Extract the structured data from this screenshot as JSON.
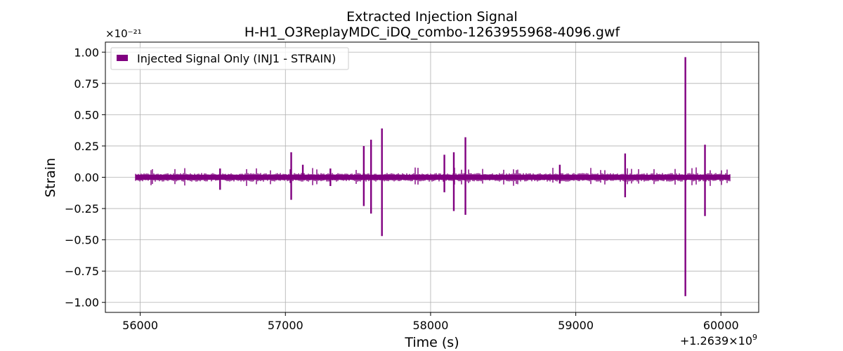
{
  "chart_data": {
    "type": "line",
    "title": "Extracted Injection Signal",
    "subtitle": "H-H1_O3ReplayMDC_iDQ_combo-1263955968-4096.gwf",
    "xlabel": "Time (s)",
    "ylabel": "Strain",
    "y_exponent_label": "×10⁻²¹",
    "x_offset_label": "+1.2639×10⁹",
    "x_offset_main": "+1.2639",
    "x_offset_times": "×",
    "x_offset_base": "10",
    "x_offset_exp": "9",
    "xlim": [
      55760,
      60260
    ],
    "ylim": [
      -1.08,
      1.08
    ],
    "x_ticks": [
      56000,
      57000,
      58000,
      59000,
      60000
    ],
    "x_tick_labels": [
      "56000",
      "57000",
      "58000",
      "59000",
      "60000"
    ],
    "y_ticks": [
      1.0,
      0.75,
      0.5,
      0.25,
      0.0,
      -0.25,
      -0.5,
      -0.75,
      -1.0
    ],
    "y_tick_labels": [
      "1.00",
      "0.75",
      "0.50",
      "0.25",
      "0.00",
      "−0.25",
      "−0.50",
      "−0.75",
      "−1.00"
    ],
    "grid": true,
    "legend_position": "top-left",
    "x_range": [
      55968,
      60064
    ],
    "series": [
      {
        "name": "Injected Signal Only (INJ1 - STRAIN)",
        "color": "#800080",
        "baseline_amplitude": 0.02,
        "spikes": [
          {
            "x": 56550,
            "max": 0.07,
            "min": -0.1
          },
          {
            "x": 57040,
            "max": 0.2,
            "min": -0.18
          },
          {
            "x": 57120,
            "max": 0.1,
            "min": -0.02
          },
          {
            "x": 57310,
            "max": 0.07,
            "min": -0.07
          },
          {
            "x": 57540,
            "max": 0.25,
            "min": -0.23
          },
          {
            "x": 57590,
            "max": 0.3,
            "min": -0.29
          },
          {
            "x": 57665,
            "max": 0.39,
            "min": -0.47
          },
          {
            "x": 58095,
            "max": 0.18,
            "min": -0.12
          },
          {
            "x": 58160,
            "max": 0.2,
            "min": -0.27
          },
          {
            "x": 58240,
            "max": 0.32,
            "min": -0.3
          },
          {
            "x": 58890,
            "max": 0.1,
            "min": -0.05
          },
          {
            "x": 59340,
            "max": 0.19,
            "min": -0.16
          },
          {
            "x": 59755,
            "max": 0.96,
            "min": -0.95
          },
          {
            "x": 59890,
            "max": 0.26,
            "min": -0.31
          }
        ]
      }
    ]
  }
}
